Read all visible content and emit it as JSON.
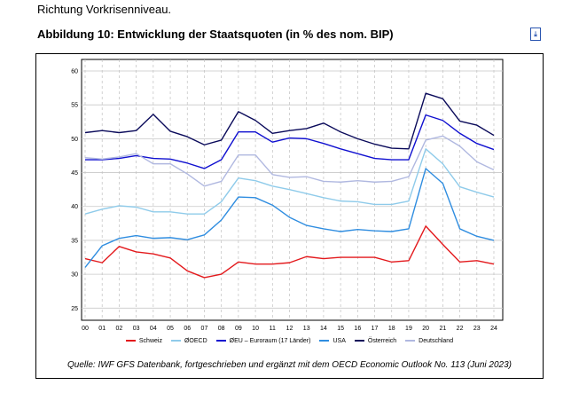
{
  "intro_text": "Richtung Vorkrisenniveau.",
  "chart_data": {
    "type": "line",
    "title": "Abbildung 10: Entwicklung der Staatsquoten (in % des nom. BIP)",
    "xlabel": "",
    "ylabel": "",
    "ylim": [
      23,
      62
    ],
    "yticks": [
      "60",
      "55",
      "50",
      "45",
      "40",
      "35",
      "30",
      "25"
    ],
    "categories": [
      "00",
      "01",
      "02",
      "03",
      "04",
      "05",
      "06",
      "07",
      "08",
      "09",
      "10",
      "11",
      "12",
      "13",
      "14",
      "15",
      "16",
      "17",
      "18",
      "19",
      "20",
      "21",
      "22",
      "23",
      "24"
    ],
    "grid": true,
    "legend_position": "bottom",
    "series": [
      {
        "name": "Schweiz",
        "color": "#e3191c",
        "values": [
          32.3,
          31.7,
          34.1,
          33.3,
          33.0,
          32.4,
          30.5,
          29.5,
          30.0,
          31.8,
          31.5,
          31.5,
          31.7,
          32.6,
          32.3,
          32.5,
          32.5,
          32.5,
          31.8,
          32.0,
          37.1,
          34.4,
          31.8,
          32.0,
          31.5
        ]
      },
      {
        "name": "ØOECD",
        "color": "#8fcbea",
        "values": [
          38.9,
          39.6,
          40.1,
          39.9,
          39.2,
          39.2,
          38.9,
          38.9,
          40.7,
          44.2,
          43.8,
          43.0,
          42.5,
          41.9,
          41.3,
          40.8,
          40.7,
          40.3,
          40.3,
          40.8,
          48.5,
          46.3,
          42.9,
          42.1,
          41.4
        ]
      },
      {
        "name": "ØEU – Euroraum (17 Länder)",
        "color": "#1010d0",
        "values": [
          46.9,
          46.9,
          47.1,
          47.5,
          47.1,
          47.0,
          46.4,
          45.6,
          46.9,
          51.0,
          51.0,
          49.5,
          50.1,
          50.0,
          49.3,
          48.5,
          47.8,
          47.1,
          46.9,
          46.9,
          53.5,
          52.7,
          50.8,
          49.3,
          48.4
        ]
      },
      {
        "name": "USA",
        "color": "#2f8de0",
        "values": [
          31.0,
          34.2,
          35.3,
          35.7,
          35.3,
          35.4,
          35.1,
          35.8,
          38.0,
          41.4,
          41.3,
          40.2,
          38.4,
          37.2,
          36.7,
          36.3,
          36.6,
          36.4,
          36.3,
          36.7,
          45.6,
          43.4,
          36.7,
          35.6,
          35.0
        ]
      },
      {
        "name": "Österreich",
        "color": "#0a0a5a",
        "values": [
          50.9,
          51.2,
          50.9,
          51.2,
          53.6,
          51.1,
          50.3,
          49.1,
          49.8,
          54.0,
          52.7,
          50.8,
          51.2,
          51.5,
          52.3,
          51.0,
          50.0,
          49.2,
          48.6,
          48.5,
          56.7,
          55.9,
          52.6,
          52.0,
          50.5
        ]
      },
      {
        "name": "Deutschland",
        "color": "#b0b8e0",
        "values": [
          47.2,
          47.0,
          47.3,
          47.8,
          46.3,
          46.3,
          44.8,
          43.0,
          43.7,
          47.6,
          47.6,
          44.7,
          44.3,
          44.4,
          43.7,
          43.6,
          43.8,
          43.6,
          43.7,
          44.4,
          49.8,
          50.4,
          48.9,
          46.6,
          45.4
        ]
      }
    ],
    "source": "Quelle: IWF GFS Datenbank, fortgeschrieben und ergänzt mit dem OECD Economic Outlook No. 113 (Juni 2023)"
  }
}
